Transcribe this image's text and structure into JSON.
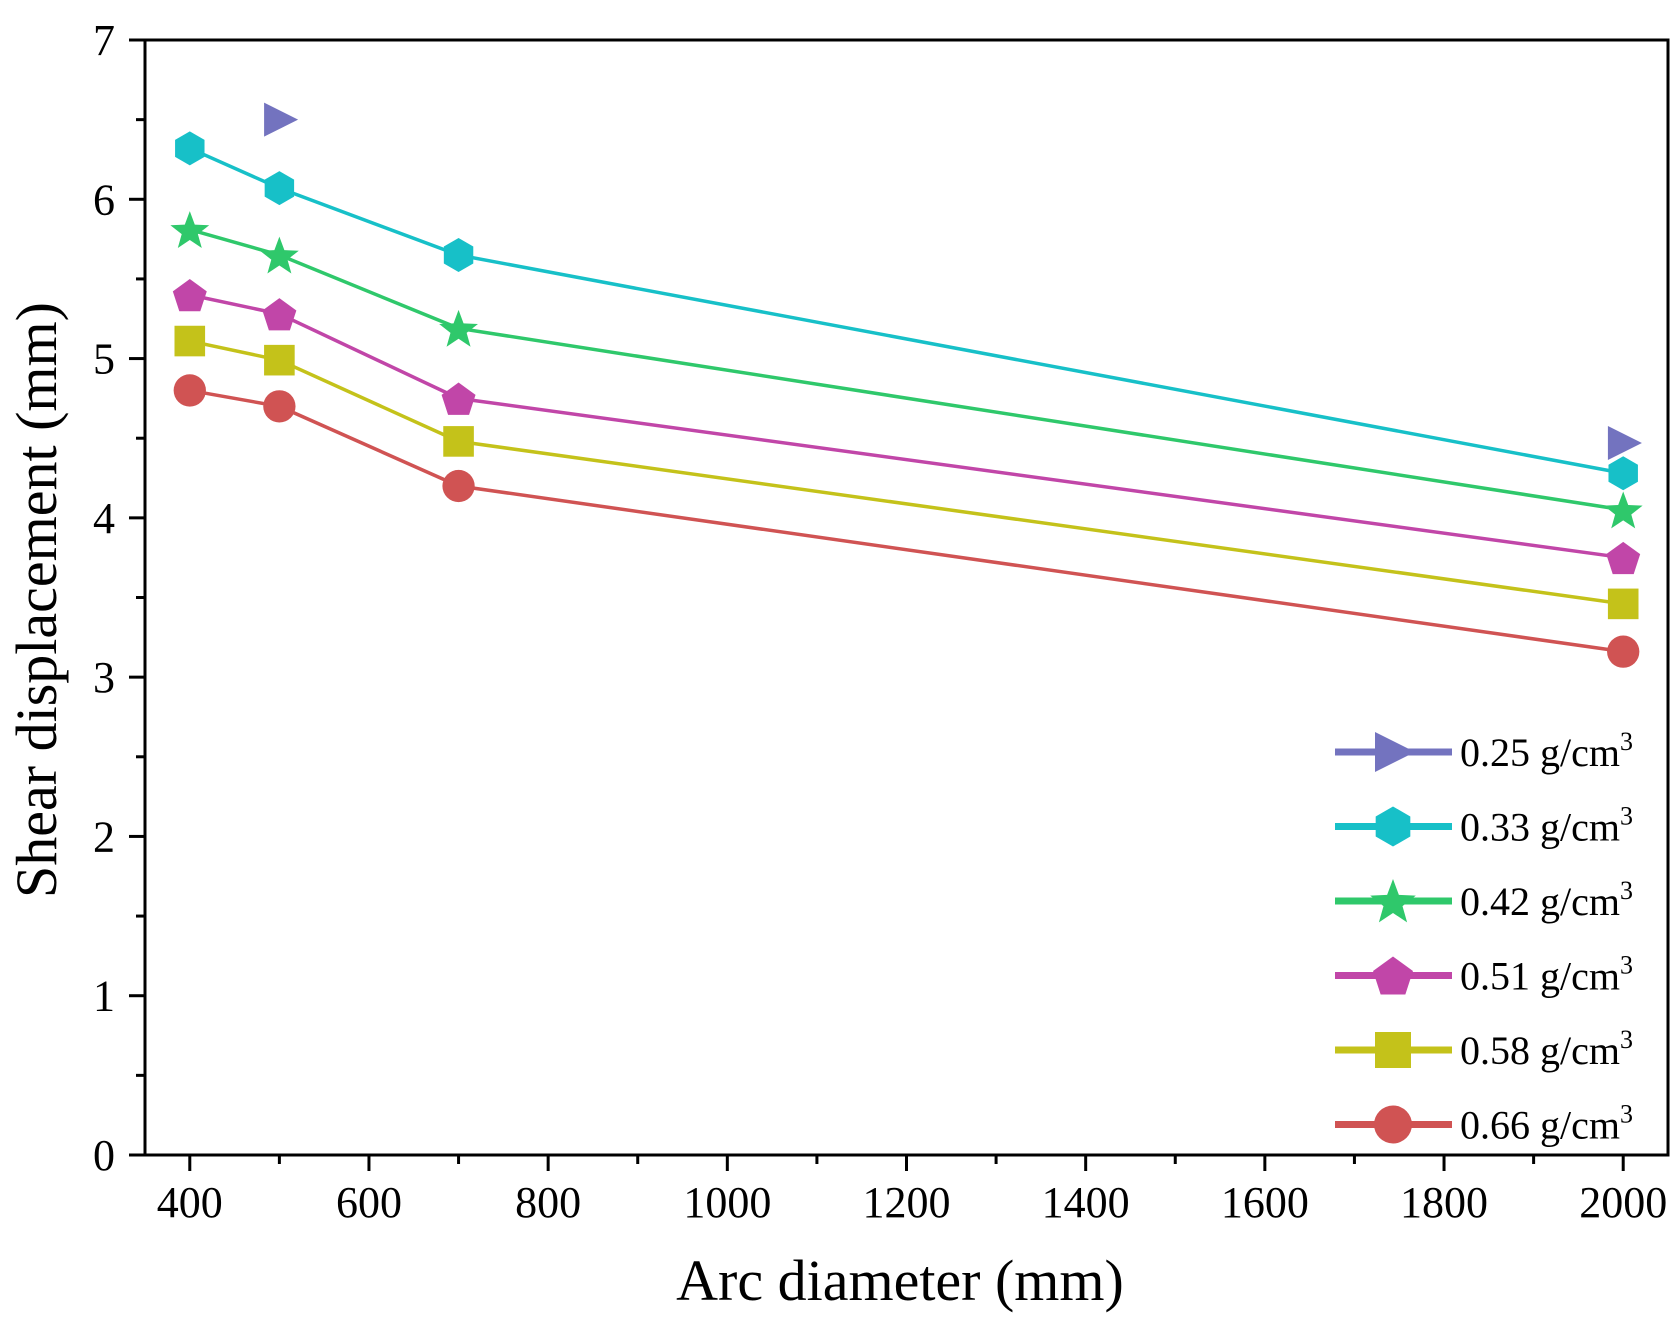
{
  "chart_data": {
    "type": "line",
    "title": "",
    "xlabel": "Arc diameter (mm)",
    "ylabel": "Shear displacement (mm)",
    "xlim": [
      350,
      2050
    ],
    "ylim": [
      0,
      7
    ],
    "xticks": [
      400,
      600,
      800,
      1000,
      1200,
      1400,
      1600,
      1800,
      2000
    ],
    "yticks": [
      0,
      1,
      2,
      3,
      4,
      5,
      6,
      7
    ],
    "grid": false,
    "legend_position": "bottom-right",
    "unit_base": " g/cm",
    "unit_sup": "3",
    "series": [
      {
        "name": "0.25",
        "color": "#7373bf",
        "marker": "triangle-right",
        "connected": false,
        "points": [
          {
            "x": 500,
            "y": 6.5
          },
          {
            "x": 2000,
            "y": 4.47
          }
        ]
      },
      {
        "name": "0.33",
        "color": "#17c0c8",
        "marker": "hexagon",
        "connected": true,
        "points": [
          {
            "x": 400,
            "y": 6.32
          },
          {
            "x": 500,
            "y": 6.07
          },
          {
            "x": 700,
            "y": 5.65
          },
          {
            "x": 2000,
            "y": 4.28
          }
        ]
      },
      {
        "name": "0.42",
        "color": "#2fc86b",
        "marker": "star",
        "connected": true,
        "points": [
          {
            "x": 400,
            "y": 5.81
          },
          {
            "x": 500,
            "y": 5.65
          },
          {
            "x": 700,
            "y": 5.19
          },
          {
            "x": 2000,
            "y": 4.05
          }
        ]
      },
      {
        "name": "0.51",
        "color": "#c146a8",
        "marker": "pentagon",
        "connected": true,
        "points": [
          {
            "x": 400,
            "y": 5.4
          },
          {
            "x": 500,
            "y": 5.28
          },
          {
            "x": 700,
            "y": 4.75
          },
          {
            "x": 2000,
            "y": 3.75
          }
        ]
      },
      {
        "name": "0.58",
        "color": "#c4c21a",
        "marker": "square",
        "connected": true,
        "points": [
          {
            "x": 400,
            "y": 5.11
          },
          {
            "x": 500,
            "y": 4.99
          },
          {
            "x": 700,
            "y": 4.48
          },
          {
            "x": 2000,
            "y": 3.46
          }
        ]
      },
      {
        "name": "0.66",
        "color": "#d05353",
        "marker": "circle",
        "connected": true,
        "points": [
          {
            "x": 400,
            "y": 4.8
          },
          {
            "x": 500,
            "y": 4.7
          },
          {
            "x": 700,
            "y": 4.2
          },
          {
            "x": 2000,
            "y": 3.16
          }
        ]
      }
    ]
  }
}
